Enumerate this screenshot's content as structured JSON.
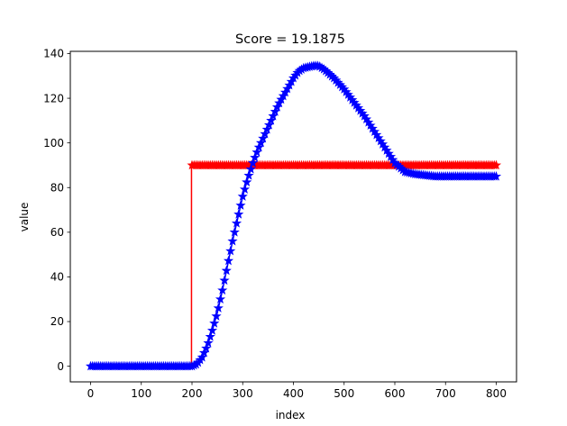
{
  "chart_data": {
    "type": "line",
    "title": "Score = 19.1875",
    "xlabel": "index",
    "ylabel": "value",
    "xlim": [
      -40,
      840
    ],
    "ylim": [
      -7,
      141
    ],
    "xticks": [
      0,
      100,
      200,
      300,
      400,
      500,
      600,
      700,
      800
    ],
    "yticks": [
      0,
      20,
      40,
      60,
      80,
      100,
      120,
      140
    ],
    "grid": false,
    "legend": null,
    "series": [
      {
        "color": "#ff0000",
        "marker": "*",
        "x": [
          0,
          199,
          199,
          200,
          800
        ],
        "y": [
          0,
          0,
          90,
          90,
          90
        ],
        "marker_x": [
          200,
          800
        ],
        "marker_step": 4,
        "marker_y": 90
      },
      {
        "color": "#0000ff",
        "marker": "*",
        "marker_step": 4,
        "x": [
          0,
          200,
          210,
          220,
          230,
          240,
          250,
          260,
          270,
          280,
          290,
          300,
          310,
          320,
          330,
          340,
          350,
          360,
          370,
          380,
          390,
          400,
          410,
          420,
          430,
          440,
          450,
          460,
          470,
          480,
          490,
          500,
          520,
          540,
          560,
          580,
          600,
          620,
          640,
          660,
          680,
          700,
          720,
          740,
          760,
          780,
          800
        ],
        "y": [
          0,
          0,
          1,
          4,
          9,
          16,
          24,
          34,
          45,
          56,
          66,
          76,
          84,
          91,
          97,
          102,
          107,
          112,
          117,
          121,
          125,
          129,
          132,
          133.5,
          134,
          134.5,
          134.5,
          133,
          131,
          129,
          126.5,
          124,
          118,
          112,
          105,
          98,
          91,
          87,
          86,
          85.5,
          85,
          85,
          85,
          85,
          85,
          85,
          85
        ]
      }
    ]
  }
}
